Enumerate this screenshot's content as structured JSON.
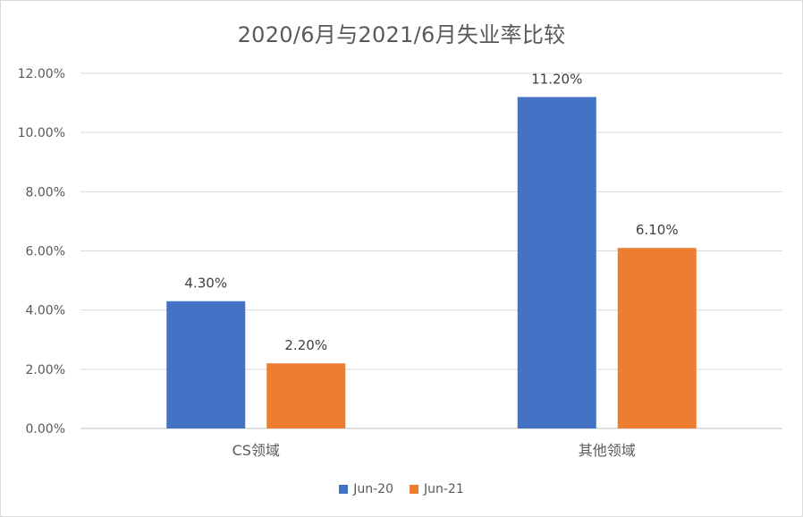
{
  "chart_data": {
    "type": "bar",
    "title": "2020/6月与2021/6月失业率比较",
    "categories": [
      "CS领域",
      "其他领域"
    ],
    "series": [
      {
        "name": "Jun-20",
        "values": [
          4.3,
          11.2
        ],
        "labels": [
          "4.30%",
          "11.20%"
        ],
        "color": "#4472C4"
      },
      {
        "name": "Jun-21",
        "values": [
          2.2,
          6.1
        ],
        "labels": [
          "2.20%",
          "6.10%"
        ],
        "color": "#ED7D31"
      }
    ],
    "yticks": [
      "0.00%",
      "2.00%",
      "4.00%",
      "6.00%",
      "8.00%",
      "10.00%",
      "12.00%"
    ],
    "ylim": [
      0,
      12
    ],
    "xlabel": "",
    "ylabel": "",
    "grid": true,
    "legend_position": "bottom"
  }
}
